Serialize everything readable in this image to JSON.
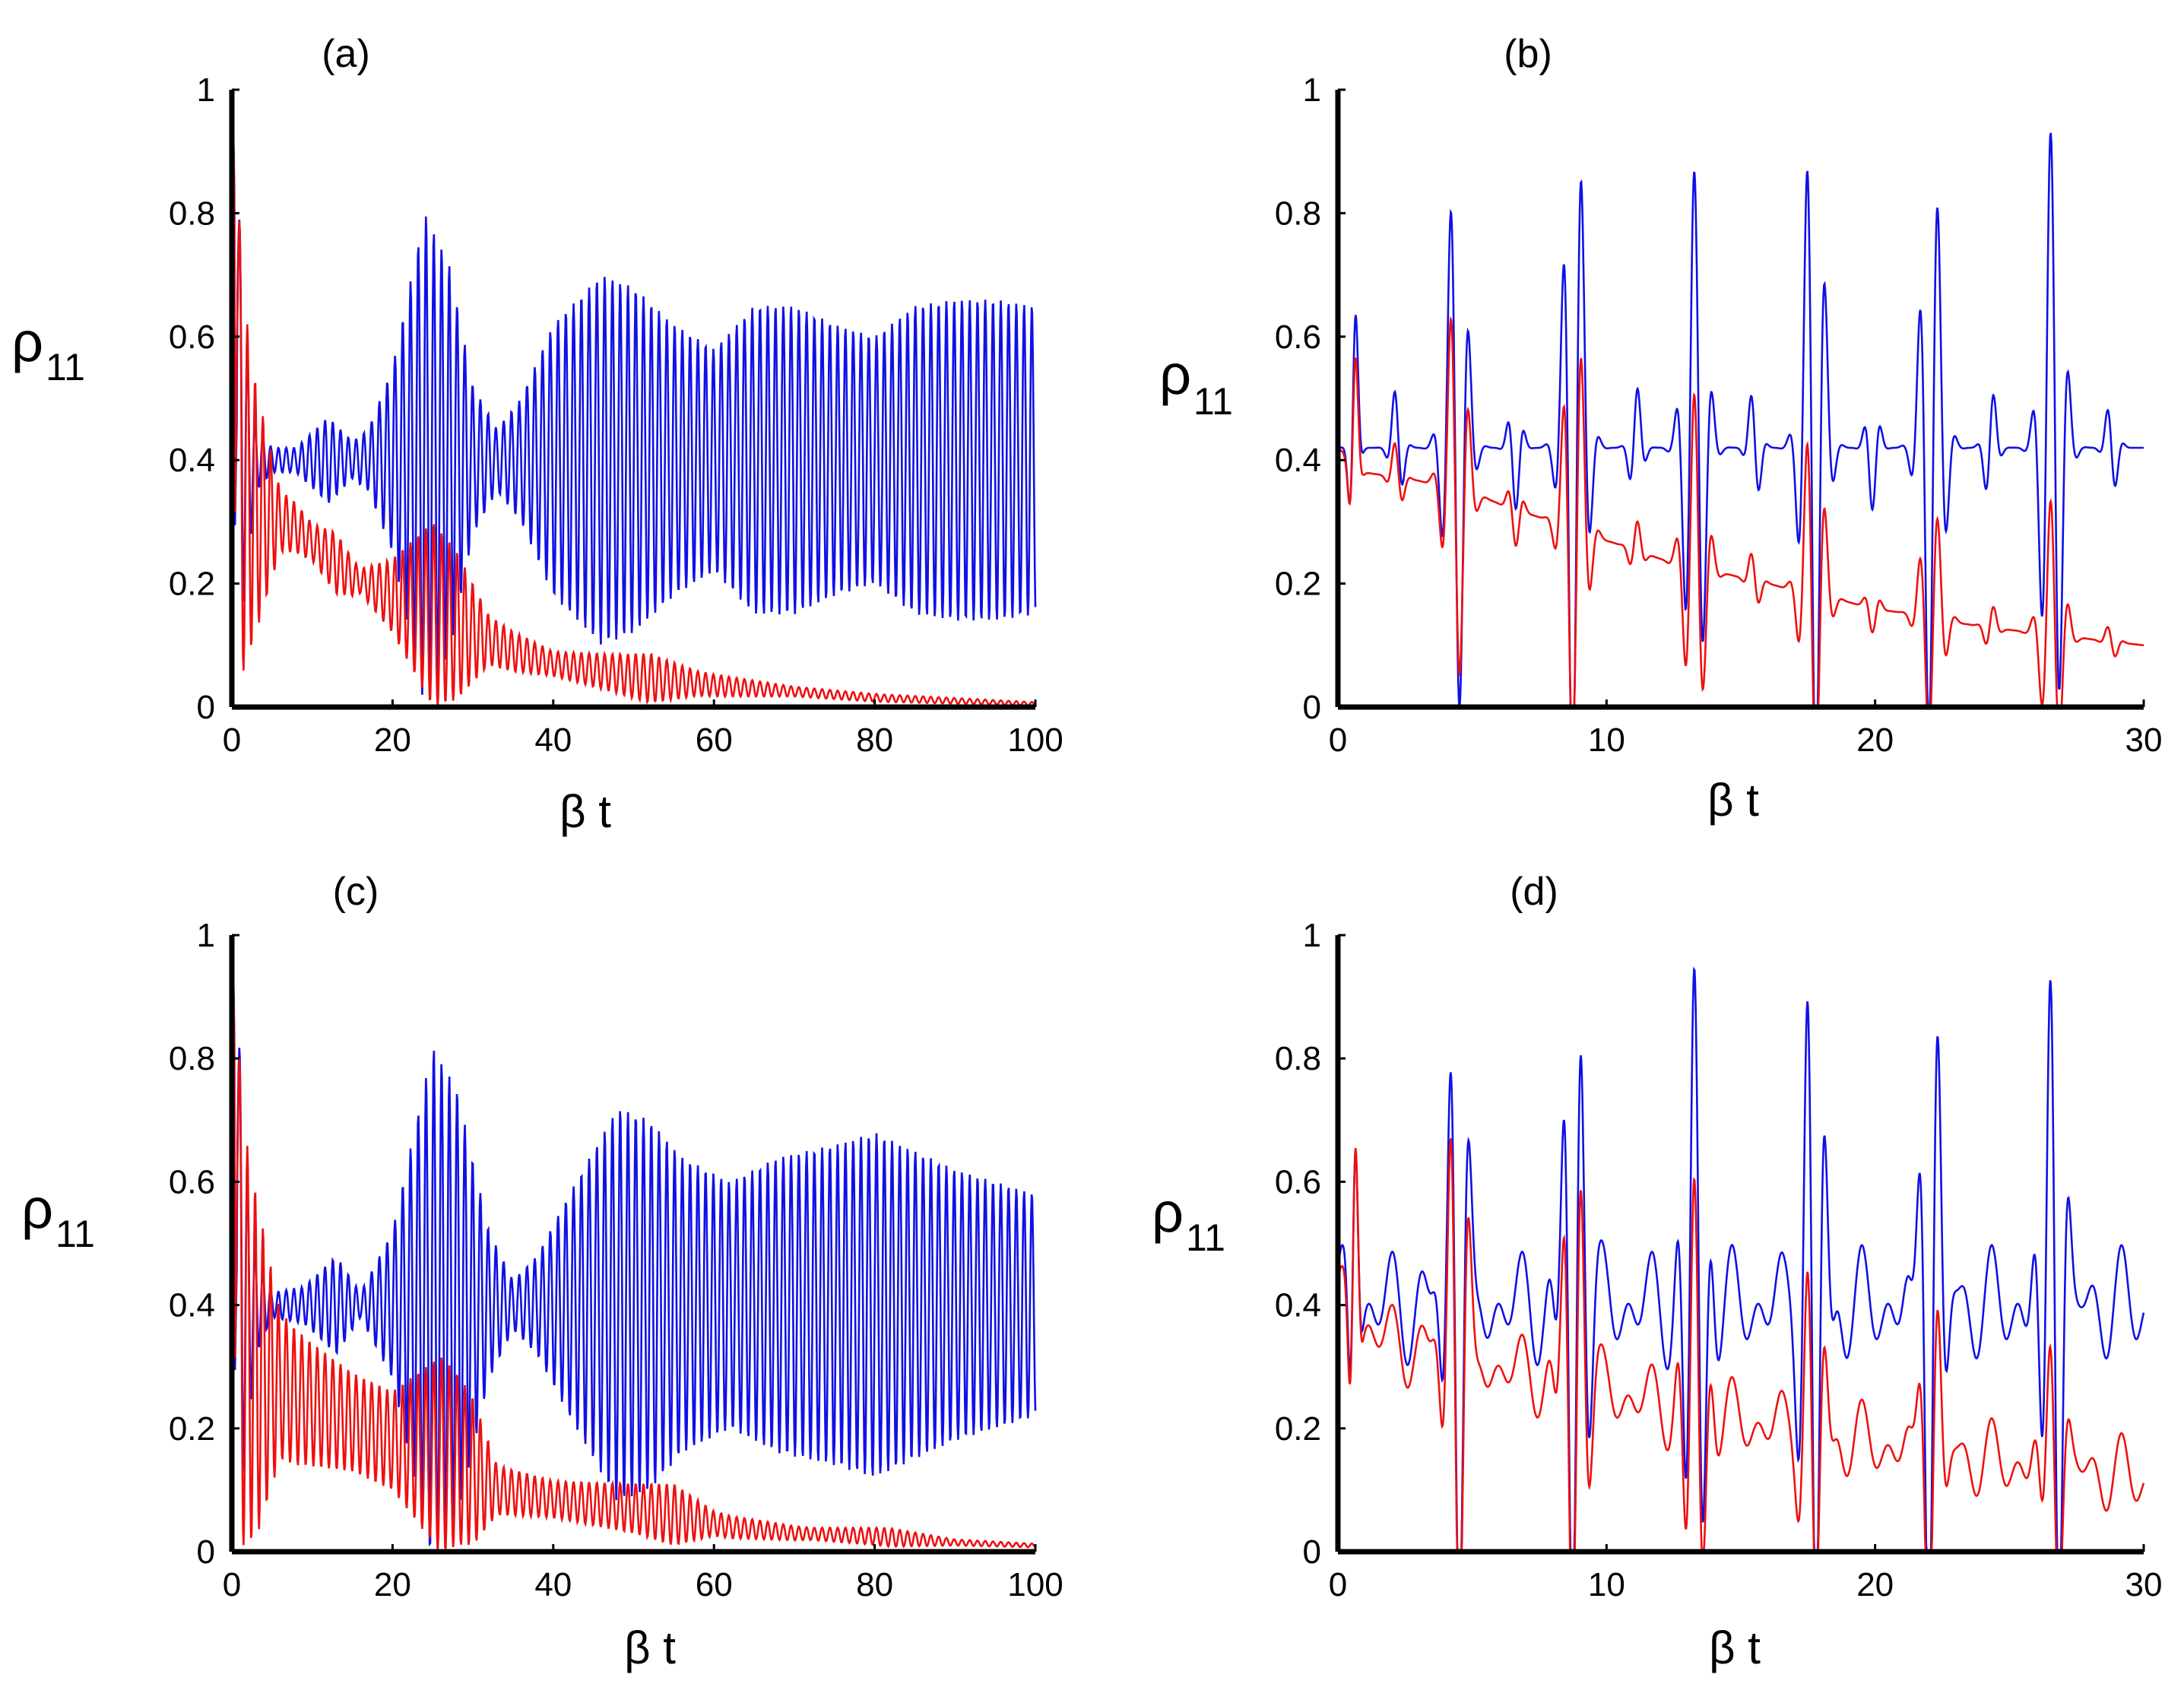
{
  "colors": {
    "series_1": "#1010e6",
    "series_2": "#ee1010",
    "axes": "#000000"
  },
  "chart_data": [
    {
      "type": "line",
      "panel_label": "(a)",
      "xlabel": "β t",
      "ylabel": {
        "main": "ρ",
        "sub": "11"
      },
      "xlim": [
        0,
        100
      ],
      "ylim": [
        0,
        1
      ],
      "xticks": [
        "0",
        "20",
        "40",
        "60",
        "80",
        "100"
      ],
      "yticks": [
        "0",
        "0.2",
        "0.4",
        "0.6",
        "0.8",
        "1"
      ],
      "series": [
        {
          "name": "blue",
          "color": "#1010e6",
          "model": {
            "t0": 0,
            "t1": 100,
            "samples": 1300,
            "baseline": 0.4,
            "omega": 6.5,
            "init_drop": 1.4,
            "envelope": [
              [
                0,
                0.4
              ],
              [
                3,
                0.05
              ],
              [
                5,
                0.02
              ],
              [
                8,
                0.02
              ],
              [
                12,
                0.07
              ],
              [
                15,
                0.03
              ],
              [
                17,
                0.05
              ],
              [
                20,
                0.15
              ],
              [
                24,
                0.4
              ],
              [
                27,
                0.32
              ],
              [
                30,
                0.12
              ],
              [
                33,
                0.05
              ],
              [
                36,
                0.1
              ],
              [
                40,
                0.22
              ],
              [
                46,
                0.3
              ],
              [
                50,
                0.28
              ],
              [
                55,
                0.22
              ],
              [
                60,
                0.18
              ],
              [
                65,
                0.25
              ],
              [
                70,
                0.25
              ],
              [
                75,
                0.22
              ],
              [
                80,
                0.2
              ],
              [
                85,
                0.25
              ],
              [
                90,
                0.26
              ],
              [
                95,
                0.26
              ],
              [
                100,
                0.25
              ]
            ]
          }
        },
        {
          "name": "red",
          "color": "#ee1010",
          "model": {
            "t0": 0,
            "t1": 100,
            "samples": 1300,
            "omega": 6.5,
            "init_drop": 1.3,
            "baseline_pts": [
              [
                0,
                0.4
              ],
              [
                3,
                0.32
              ],
              [
                8,
                0.29
              ],
              [
                15,
                0.21
              ],
              [
                20,
                0.18
              ],
              [
                25,
                0.15
              ],
              [
                30,
                0.12
              ],
              [
                35,
                0.09
              ],
              [
                40,
                0.07
              ],
              [
                50,
                0.05
              ],
              [
                60,
                0.035
              ],
              [
                70,
                0.025
              ],
              [
                80,
                0.015
              ],
              [
                90,
                0.01
              ],
              [
                100,
                0.005
              ]
            ],
            "envelope": [
              [
                0,
                0.4
              ],
              [
                3,
                0.2
              ],
              [
                6,
                0.05
              ],
              [
                10,
                0.03
              ],
              [
                13,
                0.05
              ],
              [
                16,
                0.02
              ],
              [
                20,
                0.06
              ],
              [
                25,
                0.15
              ],
              [
                28,
                0.12
              ],
              [
                32,
                0.04
              ],
              [
                40,
                0.02
              ],
              [
                47,
                0.03
              ],
              [
                52,
                0.04
              ],
              [
                58,
                0.02
              ],
              [
                70,
                0.008
              ],
              [
                100,
                0.003
              ]
            ]
          }
        }
      ]
    },
    {
      "type": "line",
      "panel_label": "(b)",
      "xlabel": "β t",
      "ylabel": {
        "main": "ρ",
        "sub": "11"
      },
      "xlim": [
        0,
        30
      ],
      "ylim": [
        0,
        1
      ],
      "xticks": [
        "0",
        "10",
        "20",
        "30"
      ],
      "yticks": [
        "0",
        "0.2",
        "0.4",
        "0.6",
        "0.8",
        "1"
      ],
      "series": [
        {
          "name": "blue",
          "color": "#1010e6",
          "model": {
            "t0": 0,
            "t1": 30,
            "samples": 1500,
            "baseline": 0.42,
            "omega": 9.0,
            "bursts": [
              [
                0.6,
                0.25,
                0.2
              ],
              [
                2.2,
                0.1,
                0.3
              ],
              [
                4.4,
                0.45,
                0.5
              ],
              [
                6.6,
                0.1,
                0.3
              ],
              [
                8.8,
                0.57,
                0.5
              ],
              [
                11.1,
                0.1,
                0.3
              ],
              [
                13.3,
                0.45,
                0.5
              ],
              [
                15.5,
                0.1,
                0.3
              ],
              [
                17.7,
                0.56,
                0.5
              ],
              [
                19.9,
                0.1,
                0.3
              ],
              [
                22.1,
                0.48,
                0.5
              ],
              [
                24.3,
                0.1,
                0.3
              ],
              [
                26.6,
                0.52,
                0.5
              ],
              [
                28.8,
                0.08,
                0.3
              ]
            ]
          }
        },
        {
          "name": "red",
          "color": "#ee1010",
          "model": {
            "t0": 0,
            "t1": 30,
            "samples": 1500,
            "omega": 9.0,
            "baseline_pts": [
              [
                0,
                0.42
              ],
              [
                1,
                0.38
              ],
              [
                4,
                0.36
              ],
              [
                8,
                0.3
              ],
              [
                12,
                0.24
              ],
              [
                16,
                0.2
              ],
              [
                20,
                0.16
              ],
              [
                24,
                0.13
              ],
              [
                28,
                0.11
              ],
              [
                30,
                0.1
              ]
            ],
            "bursts": [
              [
                0.6,
                0.2,
                0.2
              ],
              [
                2.2,
                0.06,
                0.3
              ],
              [
                4.4,
                0.32,
                0.5
              ],
              [
                6.6,
                0.06,
                0.3
              ],
              [
                8.8,
                0.37,
                0.5
              ],
              [
                11.1,
                0.05,
                0.3
              ],
              [
                13.3,
                0.28,
                0.5
              ],
              [
                15.5,
                0.05,
                0.3
              ],
              [
                17.7,
                0.3,
                0.5
              ],
              [
                19.9,
                0.04,
                0.3
              ],
              [
                22.1,
                0.2,
                0.5
              ],
              [
                24.3,
                0.04,
                0.3
              ],
              [
                26.6,
                0.22,
                0.5
              ],
              [
                28.8,
                0.03,
                0.3
              ]
            ]
          }
        }
      ]
    },
    {
      "type": "line",
      "panel_label": "(c)",
      "xlabel": "β t",
      "ylabel": {
        "main": "ρ",
        "sub": "11"
      },
      "xlim": [
        0,
        100
      ],
      "ylim": [
        0,
        1
      ],
      "xticks": [
        "0",
        "20",
        "40",
        "60",
        "80",
        "100"
      ],
      "yticks": [
        "0",
        "0.2",
        "0.4",
        "0.6",
        "0.8",
        "1"
      ],
      "series": [
        {
          "name": "blue",
          "color": "#1010e6",
          "model": {
            "t0": 0,
            "t1": 100,
            "samples": 1300,
            "baseline": 0.4,
            "omega": 6.5,
            "init_drop": 1.4,
            "envelope": [
              [
                0,
                0.45
              ],
              [
                3,
                0.08
              ],
              [
                5,
                0.02
              ],
              [
                9,
                0.03
              ],
              [
                13,
                0.08
              ],
              [
                16,
                0.02
              ],
              [
                20,
                0.12
              ],
              [
                25,
                0.42
              ],
              [
                28,
                0.35
              ],
              [
                32,
                0.12
              ],
              [
                35,
                0.04
              ],
              [
                38,
                0.08
              ],
              [
                42,
                0.18
              ],
              [
                48,
                0.32
              ],
              [
                52,
                0.3
              ],
              [
                56,
                0.24
              ],
              [
                62,
                0.2
              ],
              [
                68,
                0.24
              ],
              [
                75,
                0.26
              ],
              [
                80,
                0.28
              ],
              [
                85,
                0.25
              ],
              [
                90,
                0.22
              ],
              [
                95,
                0.2
              ],
              [
                100,
                0.18
              ]
            ]
          }
        },
        {
          "name": "red",
          "color": "#ee1010",
          "model": {
            "t0": 0,
            "t1": 100,
            "samples": 1300,
            "omega": 6.5,
            "init_drop": 1.3,
            "baseline_pts": [
              [
                0,
                0.4
              ],
              [
                3,
                0.3
              ],
              [
                8,
                0.25
              ],
              [
                15,
                0.21
              ],
              [
                20,
                0.18
              ],
              [
                28,
                0.15
              ],
              [
                33,
                0.1
              ],
              [
                40,
                0.085
              ],
              [
                50,
                0.07
              ],
              [
                55,
                0.06
              ],
              [
                62,
                0.04
              ],
              [
                70,
                0.03
              ],
              [
                80,
                0.025
              ],
              [
                90,
                0.015
              ],
              [
                100,
                0.01
              ]
            ],
            "envelope": [
              [
                0,
                0.4
              ],
              [
                3,
                0.28
              ],
              [
                6,
                0.12
              ],
              [
                10,
                0.1
              ],
              [
                15,
                0.08
              ],
              [
                20,
                0.08
              ],
              [
                26,
                0.16
              ],
              [
                30,
                0.12
              ],
              [
                33,
                0.04
              ],
              [
                40,
                0.03
              ],
              [
                50,
                0.04
              ],
              [
                55,
                0.05
              ],
              [
                60,
                0.02
              ],
              [
                72,
                0.01
              ],
              [
                82,
                0.015
              ],
              [
                90,
                0.005
              ],
              [
                100,
                0.003
              ]
            ]
          }
        }
      ]
    },
    {
      "type": "line",
      "panel_label": "(d)",
      "xlabel": "β t",
      "ylabel": {
        "main": "ρ",
        "sub": "11"
      },
      "xlim": [
        0,
        30
      ],
      "ylim": [
        0,
        1
      ],
      "xticks": [
        "0",
        "10",
        "20",
        "30"
      ],
      "yticks": [
        "0",
        "0.2",
        "0.4",
        "0.6",
        "0.8",
        "1"
      ],
      "series": [
        {
          "name": "blue",
          "color": "#1010e6",
          "model": {
            "t0": 0,
            "t1": 30,
            "samples": 1500,
            "baseline": 0.4,
            "omega": 9.0,
            "ripple": 0.1,
            "ripple_omega": 5.2,
            "bursts": [
              [
                0.6,
                0.35,
                0.2
              ],
              [
                4.4,
                0.48,
                0.5
              ],
              [
                8.8,
                0.58,
                0.5
              ],
              [
                13.3,
                0.55,
                0.5
              ],
              [
                17.7,
                0.58,
                0.5
              ],
              [
                22.1,
                0.5,
                0.5
              ],
              [
                26.6,
                0.57,
                0.5
              ]
            ]
          }
        },
        {
          "name": "red",
          "color": "#ee1010",
          "model": {
            "t0": 0,
            "t1": 30,
            "samples": 1500,
            "omega": 9.0,
            "ripple": 0.07,
            "ripple_omega": 5.2,
            "baseline_pts": [
              [
                0,
                0.4
              ],
              [
                2,
                0.34
              ],
              [
                6,
                0.3
              ],
              [
                10,
                0.26
              ],
              [
                14,
                0.22
              ],
              [
                18,
                0.19
              ],
              [
                22,
                0.16
              ],
              [
                26,
                0.14
              ],
              [
                30,
                0.12
              ]
            ],
            "bursts": [
              [
                0.6,
                0.36,
                0.2
              ],
              [
                4.4,
                0.44,
                0.5
              ],
              [
                8.8,
                0.45,
                0.5
              ],
              [
                13.3,
                0.38,
                0.5
              ],
              [
                17.7,
                0.3,
                0.5
              ],
              [
                22.1,
                0.26,
                0.5
              ],
              [
                26.6,
                0.22,
                0.5
              ]
            ]
          }
        }
      ]
    }
  ]
}
